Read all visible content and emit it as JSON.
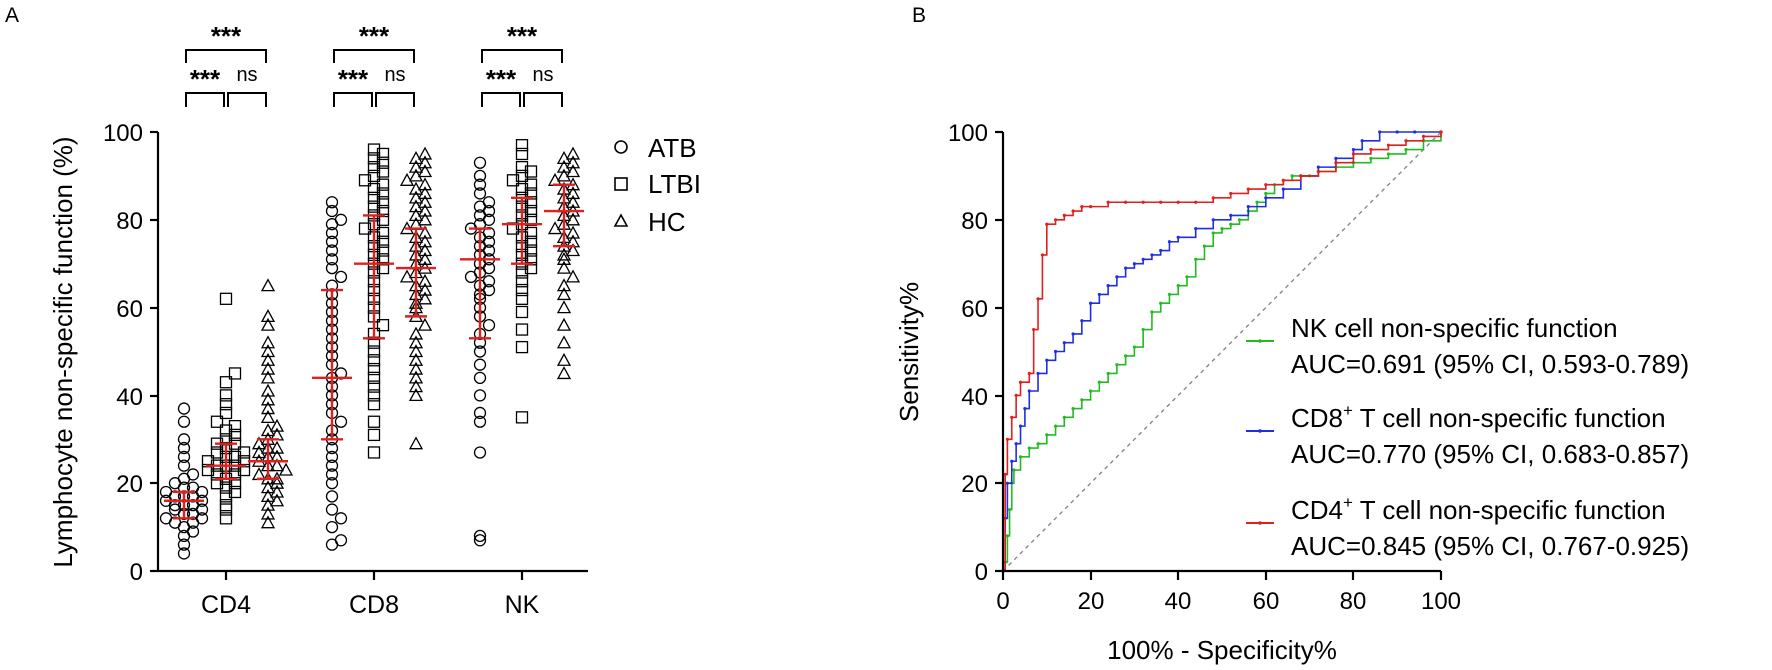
{
  "panel_a": {
    "label": "A",
    "ylabel": "Lymphocyte non-specific function (%)",
    "yticks": [
      "0",
      "20",
      "40",
      "60",
      "80",
      "100"
    ],
    "legend": [
      {
        "label": "ATB",
        "marker": "circle"
      },
      {
        "label": "LTBI",
        "marker": "square"
      },
      {
        "label": "HC",
        "marker": "triangle"
      }
    ],
    "significance": {
      "strong": "***",
      "ns": "ns"
    }
  },
  "panel_b": {
    "label": "B",
    "xlabel": "100% - Specificity%",
    "ylabel": "Sensitivity%",
    "xticks": [
      "0",
      "20",
      "40",
      "60",
      "80",
      "100"
    ],
    "yticks": [
      "0",
      "20",
      "40",
      "60",
      "80",
      "100"
    ],
    "legend": [
      {
        "name": "NK cell non-specific function",
        "auc": "AUC=0.691 (95% CI, 0.593-0.789)",
        "color": "#22bb22"
      },
      {
        "name_prefix": "CD8",
        "name_sup": "+",
        "name_suffix": " T cell non-specific function",
        "auc": "AUC=0.770 (95% CI, 0.683-0.857)",
        "color": "#1f2fe0"
      },
      {
        "name_prefix": "CD4",
        "name_sup": "+",
        "name_suffix": " T cell non-specific function",
        "auc": "AUC=0.845 (95% CI, 0.767-0.925)",
        "color": "#e01f1f"
      }
    ]
  },
  "colors": {
    "summary": "#e01f1f",
    "nk": "#22bb22",
    "cd8": "#1f2fe0",
    "cd4": "#e01f1f",
    "reference": "#808080"
  },
  "chart_data": [
    {
      "type": "scatter",
      "title": "",
      "xlabel": "",
      "ylabel": "Lymphocyte non-specific function (%)",
      "ylim": [
        0,
        100
      ],
      "categories": [
        "CD4",
        "CD8",
        "NK"
      ],
      "groups": [
        "ATB",
        "LTBI",
        "HC"
      ],
      "summary": {
        "CD4": {
          "ATB": {
            "median": 16,
            "q1": 12,
            "q3": 18
          },
          "LTBI": {
            "median": 24,
            "q1": 21,
            "q3": 29
          },
          "HC": {
            "median": 25,
            "q1": 21,
            "q3": 30
          }
        },
        "CD8": {
          "ATB": {
            "median": 44,
            "q1": 30,
            "q3": 64
          },
          "LTBI": {
            "median": 70,
            "q1": 53,
            "q3": 81
          },
          "HC": {
            "median": 69,
            "q1": 58,
            "q3": 78
          }
        },
        "NK": {
          "ATB": {
            "median": 71,
            "q1": 53,
            "q3": 78
          },
          "LTBI": {
            "median": 79,
            "q1": 70,
            "q3": 85
          },
          "HC": {
            "median": 82,
            "q1": 74,
            "q3": 88
          }
        }
      },
      "points": {
        "CD4": {
          "ATB": [
            4,
            6,
            8,
            9,
            10,
            11,
            11,
            12,
            12,
            13,
            13,
            14,
            14,
            15,
            15,
            15,
            16,
            16,
            17,
            17,
            17,
            18,
            18,
            19,
            19,
            20,
            21,
            22,
            24,
            26,
            28,
            30,
            34,
            37
          ],
          "LTBI": [
            12,
            14,
            15,
            17,
            18,
            19,
            20,
            20,
            21,
            22,
            22,
            23,
            23,
            24,
            24,
            24,
            25,
            25,
            26,
            26,
            27,
            27,
            28,
            29,
            29,
            30,
            31,
            32,
            33,
            34,
            36,
            38,
            40,
            43,
            45,
            62
          ],
          "HC": [
            11,
            13,
            15,
            16,
            17,
            18,
            19,
            20,
            21,
            21,
            22,
            23,
            24,
            24,
            25,
            26,
            26,
            27,
            28,
            28,
            29,
            30,
            31,
            32,
            33,
            35,
            37,
            39,
            41,
            44,
            46,
            48,
            50,
            52,
            56,
            58,
            65
          ]
        },
        "CD8": {
          "ATB": [
            6,
            7,
            10,
            12,
            14,
            17,
            20,
            22,
            24,
            26,
            28,
            30,
            32,
            34,
            36,
            38,
            40,
            42,
            44,
            45,
            47,
            49,
            51,
            53,
            55,
            57,
            59,
            61,
            63,
            65,
            67,
            69,
            71,
            73,
            75,
            77,
            79,
            80,
            82,
            84
          ],
          "LTBI": [
            27,
            31,
            34,
            38,
            40,
            42,
            44,
            46,
            48,
            50,
            52,
            54,
            56,
            58,
            60,
            62,
            64,
            66,
            68,
            69,
            70,
            71,
            72,
            73,
            74,
            75,
            76,
            77,
            78,
            79,
            80,
            81,
            82,
            83,
            84,
            85,
            86,
            87,
            88,
            89,
            90,
            91,
            92,
            93,
            94,
            95,
            96
          ],
          "HC": [
            29,
            40,
            42,
            44,
            46,
            48,
            50,
            52,
            54,
            56,
            58,
            60,
            61,
            62,
            63,
            64,
            65,
            66,
            67,
            68,
            69,
            70,
            71,
            72,
            73,
            74,
            75,
            76,
            77,
            78,
            79,
            80,
            81,
            82,
            83,
            84,
            85,
            86,
            87,
            88,
            89,
            90,
            91,
            92,
            93,
            94,
            95
          ]
        },
        "NK": {
          "ATB": [
            7,
            8,
            27,
            34,
            36,
            40,
            44,
            47,
            50,
            52,
            54,
            56,
            58,
            60,
            62,
            63,
            64,
            65,
            66,
            67,
            68,
            69,
            70,
            71,
            72,
            73,
            74,
            75,
            76,
            77,
            78,
            79,
            80,
            81,
            82,
            83,
            84,
            86,
            88,
            90,
            93
          ],
          "LTBI": [
            35,
            51,
            55,
            59,
            62,
            64,
            66,
            68,
            69,
            70,
            71,
            72,
            73,
            74,
            75,
            76,
            77,
            78,
            79,
            80,
            81,
            82,
            83,
            84,
            85,
            86,
            87,
            88,
            89,
            90,
            91,
            92,
            95,
            97
          ],
          "HC": [
            45,
            48,
            52,
            56,
            60,
            63,
            65,
            67,
            69,
            71,
            72,
            73,
            74,
            75,
            76,
            77,
            78,
            79,
            80,
            81,
            82,
            83,
            84,
            85,
            86,
            87,
            88,
            89,
            90,
            91,
            92,
            93,
            94,
            95
          ]
        }
      },
      "comparisons": [
        {
          "category": "CD4",
          "pair": [
            "ATB",
            "HC"
          ],
          "label": "***"
        },
        {
          "category": "CD4",
          "pair": [
            "ATB",
            "LTBI"
          ],
          "label": "***"
        },
        {
          "category": "CD4",
          "pair": [
            "LTBI",
            "HC"
          ],
          "label": "ns"
        },
        {
          "category": "CD8",
          "pair": [
            "ATB",
            "HC"
          ],
          "label": "***"
        },
        {
          "category": "CD8",
          "pair": [
            "ATB",
            "LTBI"
          ],
          "label": "***"
        },
        {
          "category": "CD8",
          "pair": [
            "LTBI",
            "HC"
          ],
          "label": "ns"
        },
        {
          "category": "NK",
          "pair": [
            "ATB",
            "HC"
          ],
          "label": "***"
        },
        {
          "category": "NK",
          "pair": [
            "ATB",
            "LTBI"
          ],
          "label": "***"
        },
        {
          "category": "NK",
          "pair": [
            "LTBI",
            "HC"
          ],
          "label": "ns"
        }
      ]
    },
    {
      "type": "line",
      "title": "",
      "xlabel": "100% - Specificity%",
      "ylabel": "Sensitivity%",
      "xlim": [
        0,
        100
      ],
      "ylim": [
        0,
        100
      ],
      "series": [
        {
          "name": "NK cell non-specific function",
          "auc": 0.691,
          "ci": [
            0.593,
            0.789
          ],
          "x": [
            0,
            0.5,
            1,
            1.5,
            2,
            2.5,
            4,
            6,
            8,
            10,
            12,
            14,
            16,
            18,
            20,
            22,
            24,
            26,
            28,
            30,
            32,
            34,
            36,
            38,
            40,
            42,
            44,
            46,
            48,
            50,
            52,
            54,
            56,
            58,
            60,
            62,
            64,
            66,
            70,
            72,
            76,
            80,
            84,
            88,
            92,
            96,
            100
          ],
          "y": [
            0,
            2,
            8,
            14,
            20,
            23,
            26,
            28,
            29,
            31,
            33,
            35,
            37,
            39,
            41,
            43,
            45,
            47,
            49,
            51,
            55,
            59,
            61,
            63,
            65,
            67,
            71,
            74,
            77,
            78,
            79,
            80,
            82,
            84,
            86,
            88,
            89,
            90,
            90,
            91,
            92,
            93,
            94,
            95,
            96,
            98,
            100
          ]
        },
        {
          "name": "CD8+ T cell non-specific function",
          "auc": 0.77,
          "ci": [
            0.683,
            0.857
          ],
          "x": [
            0,
            0.5,
            1,
            2,
            3,
            4,
            5,
            6,
            8,
            10,
            12,
            14,
            16,
            18,
            20,
            22,
            24,
            26,
            28,
            30,
            32,
            34,
            36,
            38,
            40,
            44,
            48,
            52,
            56,
            60,
            64,
            68,
            72,
            76,
            80,
            82,
            86,
            90,
            94,
            100
          ],
          "y": [
            0,
            12,
            20,
            25,
            29,
            33,
            37,
            41,
            45,
            48,
            50,
            52,
            54,
            57,
            61,
            63,
            65,
            67,
            69,
            70,
            71,
            72,
            73,
            75,
            76,
            78,
            80,
            81,
            83,
            85,
            87,
            90,
            92,
            94,
            96,
            98,
            100,
            100,
            100,
            100
          ]
        },
        {
          "name": "CD4+ T cell non-specific function",
          "auc": 0.845,
          "ci": [
            0.767,
            0.925
          ],
          "x": [
            0,
            0.5,
            1,
            2,
            3,
            4,
            6,
            7,
            8,
            9,
            10,
            12,
            14,
            16,
            18,
            20,
            24,
            28,
            32,
            36,
            40,
            44,
            48,
            52,
            56,
            60,
            64,
            68,
            72,
            76,
            80,
            84,
            88,
            92,
            96,
            100
          ],
          "y": [
            0,
            22,
            30,
            35,
            40,
            43,
            45,
            55,
            62,
            72,
            79,
            80,
            81,
            82,
            83,
            83,
            84,
            84,
            84,
            84,
            84,
            84,
            85,
            86,
            87,
            88,
            89,
            90,
            91,
            93,
            95,
            96,
            97,
            98,
            99,
            100
          ]
        }
      ],
      "reference_line": {
        "x": [
          0,
          100
        ],
        "y": [
          0,
          100
        ]
      }
    }
  ]
}
